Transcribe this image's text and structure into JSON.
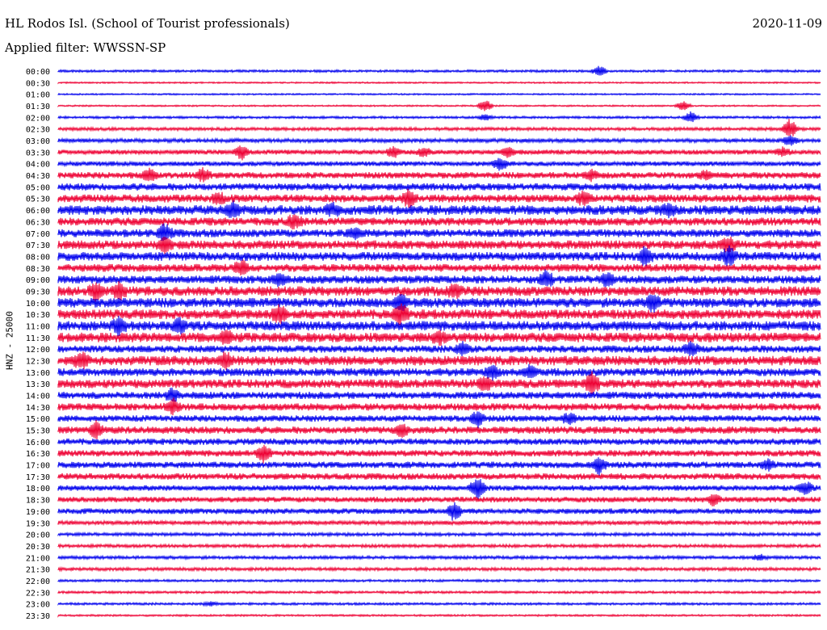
{
  "header": {
    "title": "HL Rodos Isl. (School of Tourist professionals)",
    "date": "2020-11-09",
    "filter": "Applied filter: WWSSN-SP"
  },
  "chart_data": {
    "type": "line",
    "title": "HL Rodos Isl. (School of Tourist professionals)",
    "ylabel": "HNZ - 25000",
    "colors": [
      "#0000ee",
      "#ee0033"
    ],
    "tick_labels": [
      "00:00",
      "00:30",
      "01:00",
      "01:30",
      "02:00",
      "02:30",
      "03:00",
      "03:30",
      "04:00",
      "04:30",
      "05:00",
      "05:30",
      "06:00",
      "06:30",
      "07:00",
      "07:30",
      "08:00",
      "08:30",
      "09:00",
      "09:30",
      "10:00",
      "10:30",
      "11:00",
      "11:30",
      "12:00",
      "12:30",
      "13:00",
      "13:30",
      "14:00",
      "14:30",
      "15:00",
      "15:30",
      "16:00",
      "16:30",
      "17:00",
      "17:30",
      "18:00",
      "18:30",
      "19:00",
      "19:30",
      "20:00",
      "20:30",
      "21:00",
      "21:30",
      "22:00",
      "22:30",
      "23:00",
      "23:30"
    ],
    "series": [
      {
        "amp": 1.5,
        "bursts": [
          [
            0.71,
            6
          ]
        ]
      },
      {
        "amp": 1,
        "bursts": []
      },
      {
        "amp": 1,
        "bursts": []
      },
      {
        "amp": 1,
        "bursts": [
          [
            0.56,
            8
          ],
          [
            0.82,
            6
          ]
        ]
      },
      {
        "amp": 1.5,
        "bursts": [
          [
            0.56,
            4
          ],
          [
            0.83,
            7
          ]
        ]
      },
      {
        "amp": 2,
        "bursts": [
          [
            0.96,
            12
          ]
        ]
      },
      {
        "amp": 2.5,
        "bursts": [
          [
            0.96,
            6
          ]
        ]
      },
      {
        "amp": 3,
        "bursts": [
          [
            0.24,
            9
          ],
          [
            0.44,
            6
          ],
          [
            0.48,
            5
          ],
          [
            0.59,
            6
          ],
          [
            0.95,
            5
          ]
        ]
      },
      {
        "amp": 3,
        "bursts": [
          [
            0.58,
            8
          ]
        ]
      },
      {
        "amp": 4,
        "bursts": [
          [
            0.12,
            7
          ],
          [
            0.19,
            8
          ],
          [
            0.7,
            5
          ],
          [
            0.85,
            5
          ]
        ]
      },
      {
        "amp": 4.5,
        "bursts": []
      },
      {
        "amp": 5,
        "bursts": [
          [
            0.21,
            6
          ],
          [
            0.46,
            9
          ],
          [
            0.69,
            8
          ]
        ]
      },
      {
        "amp": 6,
        "bursts": [
          [
            0.23,
            8
          ],
          [
            0.36,
            6
          ],
          [
            0.8,
            7
          ]
        ]
      },
      {
        "amp": 5,
        "bursts": [
          [
            0.31,
            8
          ]
        ]
      },
      {
        "amp": 5,
        "bursts": [
          [
            0.14,
            10
          ],
          [
            0.39,
            6
          ]
        ]
      },
      {
        "amp": 5.5,
        "bursts": [
          [
            0.14,
            8
          ],
          [
            0.88,
            8
          ]
        ]
      },
      {
        "amp": 5.5,
        "bursts": [
          [
            0.77,
            10
          ],
          [
            0.88,
            10
          ]
        ]
      },
      {
        "amp": 5,
        "bursts": [
          [
            0.24,
            9
          ]
        ]
      },
      {
        "amp": 5,
        "bursts": [
          [
            0.29,
            7
          ],
          [
            0.64,
            9
          ],
          [
            0.72,
            7
          ]
        ]
      },
      {
        "amp": 6,
        "bursts": [
          [
            0.05,
            11
          ],
          [
            0.08,
            8
          ],
          [
            0.52,
            7
          ]
        ]
      },
      {
        "amp": 6,
        "bursts": [
          [
            0.45,
            8
          ],
          [
            0.78,
            10
          ]
        ]
      },
      {
        "amp": 6,
        "bursts": [
          [
            0.29,
            9
          ],
          [
            0.45,
            12
          ]
        ]
      },
      {
        "amp": 6,
        "bursts": [
          [
            0.08,
            10
          ],
          [
            0.16,
            8
          ]
        ]
      },
      {
        "amp": 6,
        "bursts": [
          [
            0.22,
            8
          ],
          [
            0.5,
            6
          ]
        ]
      },
      {
        "amp": 4.5,
        "bursts": [
          [
            0.53,
            8
          ],
          [
            0.83,
            8
          ]
        ]
      },
      {
        "amp": 6,
        "bursts": [
          [
            0.03,
            9
          ],
          [
            0.22,
            8
          ]
        ]
      },
      {
        "amp": 5,
        "bursts": [
          [
            0.57,
            8
          ],
          [
            0.62,
            7
          ]
        ]
      },
      {
        "amp": 5.5,
        "bursts": [
          [
            0.56,
            9
          ],
          [
            0.7,
            12
          ]
        ]
      },
      {
        "amp": 4.5,
        "bursts": [
          [
            0.15,
            8
          ]
        ]
      },
      {
        "amp": 4.5,
        "bursts": [
          [
            0.15,
            9
          ]
        ]
      },
      {
        "amp": 4,
        "bursts": [
          [
            0.55,
            10
          ],
          [
            0.67,
            6
          ]
        ]
      },
      {
        "amp": 4.5,
        "bursts": [
          [
            0.05,
            10
          ],
          [
            0.45,
            7
          ]
        ]
      },
      {
        "amp": 4,
        "bursts": []
      },
      {
        "amp": 4,
        "bursts": [
          [
            0.27,
            11
          ]
        ]
      },
      {
        "amp": 4,
        "bursts": [
          [
            0.71,
            11
          ],
          [
            0.93,
            6
          ]
        ]
      },
      {
        "amp": 4,
        "bursts": []
      },
      {
        "amp": 3.5,
        "bursts": [
          [
            0.55,
            14
          ],
          [
            0.98,
            8
          ]
        ]
      },
      {
        "amp": 3.5,
        "bursts": [
          [
            0.86,
            7
          ]
        ]
      },
      {
        "amp": 3.5,
        "bursts": [
          [
            0.52,
            11
          ]
        ]
      },
      {
        "amp": 2.5,
        "bursts": []
      },
      {
        "amp": 2,
        "bursts": []
      },
      {
        "amp": 2,
        "bursts": []
      },
      {
        "amp": 2,
        "bursts": [
          [
            0.92,
            4
          ]
        ]
      },
      {
        "amp": 2,
        "bursts": []
      },
      {
        "amp": 1.5,
        "bursts": []
      },
      {
        "amp": 1.5,
        "bursts": []
      },
      {
        "amp": 1.5,
        "bursts": [
          [
            0.2,
            3
          ]
        ]
      },
      {
        "amp": 1.2,
        "bursts": []
      }
    ]
  }
}
